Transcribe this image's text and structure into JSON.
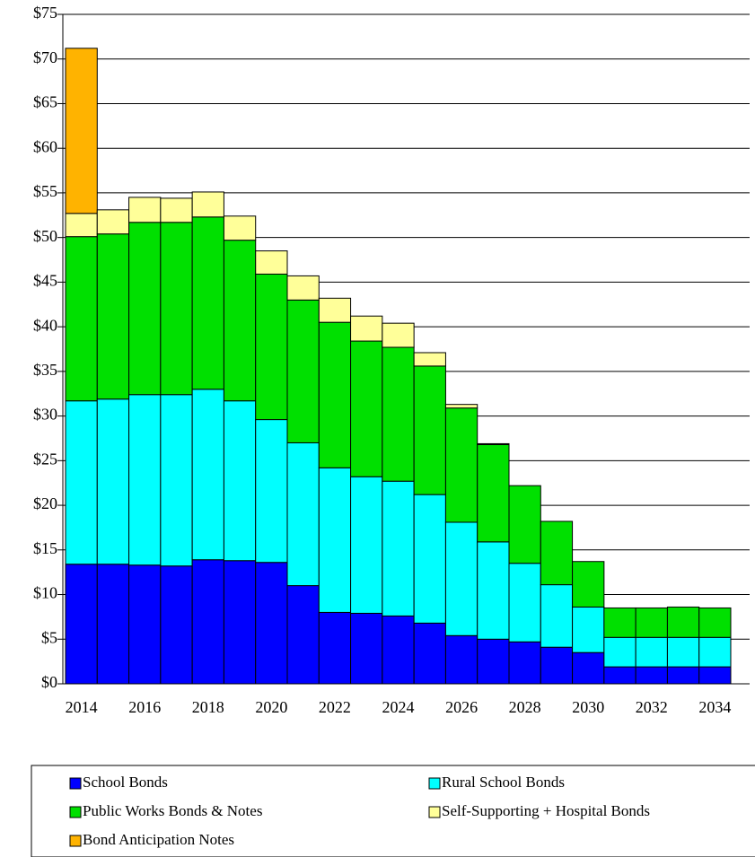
{
  "chart_data": {
    "type": "stacked_bar",
    "categories": [
      "2014",
      null,
      "2016",
      null,
      "2018",
      null,
      "2020",
      null,
      "2022",
      null,
      "2024",
      null,
      "2026",
      null,
      "2028",
      null,
      "2030",
      null,
      "2032",
      null,
      "2034"
    ],
    "series": [
      {
        "name": "School Bonds",
        "color": "#0000ff",
        "values": [
          13.4,
          13.4,
          13.3,
          13.2,
          13.9,
          13.8,
          13.6,
          11.0,
          8.0,
          7.9,
          7.6,
          6.8,
          5.4,
          5.0,
          4.7,
          4.1,
          3.5,
          1.9,
          1.9,
          1.9,
          1.9
        ]
      },
      {
        "name": "Rural School Bonds",
        "color": "#00ffff",
        "values": [
          18.3,
          18.5,
          19.1,
          19.2,
          19.1,
          17.9,
          16.0,
          16.0,
          16.2,
          15.3,
          15.1,
          14.4,
          12.7,
          10.9,
          8.8,
          7.0,
          5.1,
          3.3,
          3.3,
          3.3,
          3.3
        ]
      },
      {
        "name": "Public Works Bonds & Notes",
        "color": "#00e000",
        "values": [
          18.4,
          18.5,
          19.3,
          19.3,
          19.3,
          18.0,
          16.3,
          16.0,
          16.3,
          15.2,
          15.0,
          14.4,
          12.8,
          10.9,
          8.7,
          7.1,
          5.1,
          3.3,
          3.3,
          3.4,
          3.3
        ]
      },
      {
        "name": "Self-Supporting + Hospital Bonds",
        "color": "#ffff99",
        "values": [
          2.6,
          2.7,
          2.8,
          2.7,
          2.8,
          2.7,
          2.6,
          2.7,
          2.7,
          2.8,
          2.7,
          1.5,
          0.4,
          0.1,
          0,
          0,
          0,
          0,
          0,
          0,
          0
        ]
      },
      {
        "name": "Bond Anticipation Notes",
        "color": "#ffb300",
        "values": [
          18.5,
          0,
          0,
          0,
          0,
          0,
          0,
          0,
          0,
          0,
          0,
          0,
          0,
          0,
          0,
          0,
          0,
          0,
          0,
          0,
          0
        ]
      }
    ],
    "ylim": [
      0,
      75
    ],
    "yticks": [
      {
        "value": 0,
        "label": "$0"
      },
      {
        "value": 5,
        "label": "$5"
      },
      {
        "value": 10,
        "label": "$10"
      },
      {
        "value": 15,
        "label": "$15"
      },
      {
        "value": 20,
        "label": "$20"
      },
      {
        "value": 25,
        "label": "$25"
      },
      {
        "value": 30,
        "label": "$30"
      },
      {
        "value": 35,
        "label": "$35"
      },
      {
        "value": 40,
        "label": "$40"
      },
      {
        "value": 45,
        "label": "$45"
      },
      {
        "value": 50,
        "label": "$50"
      },
      {
        "value": 55,
        "label": "$55"
      },
      {
        "value": 60,
        "label": "$60"
      },
      {
        "value": 65,
        "label": "$65"
      },
      {
        "value": 70,
        "label": "$70"
      },
      {
        "value": 75,
        "label": "$75"
      }
    ],
    "grid": true,
    "legend": "bottom"
  }
}
